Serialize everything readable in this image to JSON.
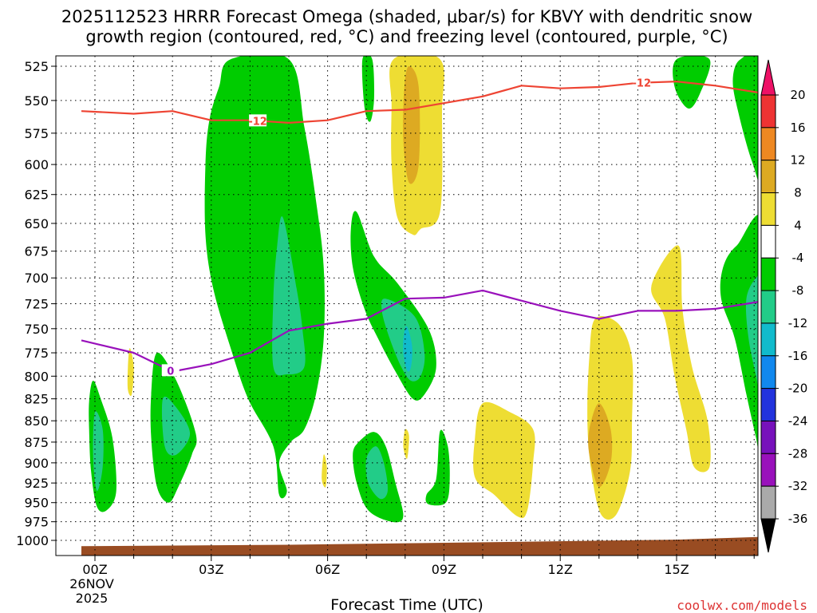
{
  "chart_data": {
    "type": "time-height cross section",
    "title_line1": "2025112523 HRRR Forecast Omega (shaded, μbar/s) for KBVY with dendritic snow",
    "title_line2": "growth region (contoured, red, °C) and freezing level (contoured, purple, °C)",
    "xlabel": "Forecast Time (UTC)",
    "credit": "coolwx.com/models",
    "xlim": [
      -0.35,
      17.3
    ],
    "ylim_hpa": [
      525,
      1000
    ],
    "y_ticks": [
      "525",
      "550",
      "575",
      "600",
      "625",
      "650",
      "675",
      "700",
      "725",
      "750",
      "775",
      "800",
      "825",
      "850",
      "875",
      "900",
      "925",
      "950",
      "975",
      "1000"
    ],
    "x_ticks": [
      {
        "hour": 0,
        "label": "00Z"
      },
      {
        "hour": 3,
        "label": "03Z"
      },
      {
        "hour": 6,
        "label": "06Z"
      },
      {
        "hour": 9,
        "label": "09Z"
      },
      {
        "hour": 12,
        "label": "12Z"
      },
      {
        "hour": 15,
        "label": "15Z"
      }
    ],
    "date_label": "26NOV",
    "year_label": "2025",
    "colorbar": {
      "ticks": [
        "20",
        "16",
        "12",
        "8",
        "4",
        "-4",
        "-8",
        "-12",
        "-16",
        "-20",
        "-24",
        "-28",
        "-32",
        "-36"
      ],
      "colors": [
        "#ee1166",
        "#ee3333",
        "#ee8822",
        "#ddaa22",
        "#eedd33",
        "#ffffff",
        "#00cc00",
        "#22cc88",
        "#11bbcc",
        "#1188ee",
        "#2233dd",
        "#7711bb",
        "#9911bb",
        "#aaaaaa",
        "#000000"
      ]
    },
    "snow_growth_line": {
      "label": "-12",
      "color": "#ee4433",
      "points": [
        [
          -0.35,
          558
        ],
        [
          1,
          560
        ],
        [
          2,
          558
        ],
        [
          3,
          565
        ],
        [
          4,
          565
        ],
        [
          5,
          567
        ],
        [
          6,
          565
        ],
        [
          7,
          558
        ],
        [
          8,
          557
        ],
        [
          9,
          552
        ],
        [
          10,
          547
        ],
        [
          11,
          539
        ],
        [
          12,
          541
        ],
        [
          13,
          540
        ],
        [
          14,
          537
        ],
        [
          15,
          536
        ],
        [
          16,
          539
        ],
        [
          17.3,
          545
        ]
      ]
    },
    "freezing_line": {
      "label": "0",
      "color": "#9911bb",
      "points": [
        [
          -0.35,
          762
        ],
        [
          1,
          775
        ],
        [
          2,
          795
        ],
        [
          3,
          787
        ],
        [
          4,
          775
        ],
        [
          5,
          752
        ],
        [
          6,
          745
        ],
        [
          7,
          740
        ],
        [
          8,
          720
        ],
        [
          9,
          719
        ],
        [
          10,
          712
        ],
        [
          11,
          722
        ],
        [
          12,
          732
        ],
        [
          13,
          740
        ],
        [
          14,
          732
        ],
        [
          15,
          732
        ],
        [
          16,
          730
        ],
        [
          17.3,
          722
        ]
      ]
    },
    "omega_regions": [
      {
        "value": -4,
        "color": "#00cc00",
        "points": [
          [
            3.5,
            520
          ],
          [
            5.0,
            520
          ],
          [
            5.4,
            570
          ],
          [
            5.7,
            630
          ],
          [
            5.9,
            690
          ],
          [
            5.9,
            760
          ],
          [
            5.7,
            820
          ],
          [
            5.4,
            860
          ],
          [
            5.05,
            875
          ],
          [
            4.75,
            900
          ],
          [
            4.95,
            935
          ],
          [
            4.75,
            940
          ],
          [
            4.6,
            880
          ],
          [
            3.95,
            825
          ],
          [
            3.5,
            770
          ],
          [
            3.05,
            710
          ],
          [
            2.85,
            660
          ],
          [
            2.85,
            600
          ],
          [
            2.95,
            565
          ],
          [
            3.2,
            540
          ]
        ]
      },
      {
        "value": -8,
        "color": "#22cc88",
        "points": [
          [
            4.85,
            645
          ],
          [
            5.2,
            710
          ],
          [
            5.35,
            750
          ],
          [
            5.4,
            790
          ],
          [
            4.95,
            798
          ],
          [
            4.6,
            790
          ],
          [
            4.6,
            720
          ],
          [
            4.7,
            670
          ]
        ]
      },
      {
        "value": -4,
        "color": "#00cc00",
        "points": [
          [
            6.75,
            640
          ],
          [
            7.2,
            680
          ],
          [
            7.8,
            705
          ],
          [
            8.6,
            750
          ],
          [
            8.8,
            790
          ],
          [
            8.5,
            820
          ],
          [
            8.2,
            825
          ],
          [
            7.75,
            795
          ],
          [
            7.3,
            760
          ],
          [
            6.95,
            730
          ],
          [
            6.65,
            690
          ],
          [
            6.6,
            655
          ]
        ]
      },
      {
        "value": -8,
        "color": "#22cc88",
        "points": [
          [
            7.5,
            720
          ],
          [
            8.25,
            738
          ],
          [
            8.5,
            775
          ],
          [
            8.4,
            800
          ],
          [
            8.15,
            805
          ],
          [
            7.9,
            790
          ],
          [
            7.6,
            760
          ],
          [
            7.4,
            732
          ]
        ]
      },
      {
        "value": -12,
        "color": "#11bbcc",
        "points": [
          [
            8.05,
            748
          ],
          [
            8.18,
            768
          ],
          [
            8.15,
            790
          ],
          [
            8.05,
            794
          ],
          [
            7.95,
            775
          ],
          [
            7.97,
            755
          ]
        ]
      },
      {
        "value": -4,
        "color": "#00cc00",
        "points": [
          [
            6.8,
            875
          ],
          [
            7.2,
            863
          ],
          [
            7.5,
            880
          ],
          [
            7.75,
            925
          ],
          [
            7.95,
            968
          ],
          [
            7.65,
            975
          ],
          [
            7.05,
            960
          ],
          [
            6.75,
            925
          ],
          [
            6.65,
            890
          ]
        ]
      },
      {
        "value": -8,
        "color": "#22cc88",
        "points": [
          [
            7.0,
            895
          ],
          [
            7.25,
            880
          ],
          [
            7.45,
            900
          ],
          [
            7.55,
            935
          ],
          [
            7.35,
            945
          ],
          [
            7.05,
            925
          ]
        ]
      },
      {
        "value": -4,
        "color": "#00cc00",
        "points": [
          [
            8.9,
            862
          ],
          [
            9.1,
            880
          ],
          [
            9.15,
            920
          ],
          [
            9.05,
            950
          ],
          [
            8.6,
            952
          ],
          [
            8.55,
            940
          ],
          [
            8.8,
            920
          ]
        ]
      },
      {
        "value": -4,
        "color": "#00cc00",
        "points": [
          [
            1.6,
            775
          ],
          [
            2.1,
            805
          ],
          [
            2.6,
            865
          ],
          [
            2.5,
            890
          ],
          [
            2.15,
            930
          ],
          [
            1.9,
            950
          ],
          [
            1.6,
            930
          ],
          [
            1.45,
            870
          ],
          [
            1.45,
            820
          ]
        ]
      },
      {
        "value": -8,
        "color": "#22cc88",
        "points": [
          [
            1.75,
            825
          ],
          [
            2.1,
            835
          ],
          [
            2.45,
            865
          ],
          [
            2.1,
            890
          ],
          [
            1.8,
            880
          ]
        ]
      },
      {
        "value": -4,
        "color": "#00cc00",
        "points": [
          [
            -0.05,
            805
          ],
          [
            0.15,
            825
          ],
          [
            0.45,
            870
          ],
          [
            0.55,
            935
          ],
          [
            0.3,
            960
          ],
          [
            0.05,
            955
          ],
          [
            -0.1,
            910
          ],
          [
            -0.15,
            860
          ],
          [
            -0.15,
            828
          ]
        ]
      },
      {
        "value": -8,
        "color": "#22cc88",
        "points": [
          [
            0.0,
            840
          ],
          [
            0.2,
            860
          ],
          [
            0.2,
            905
          ],
          [
            0.05,
            935
          ],
          [
            -0.05,
            890
          ]
        ]
      },
      {
        "value": -4,
        "color": "#00cc00",
        "points": [
          [
            6.9,
            520
          ],
          [
            7.15,
            520
          ],
          [
            7.2,
            548
          ],
          [
            7.1,
            566
          ],
          [
            6.95,
            555
          ]
        ]
      },
      {
        "value": -4,
        "color": "#00cc00",
        "points": [
          [
            15.0,
            520
          ],
          [
            15.85,
            520
          ],
          [
            15.6,
            545
          ],
          [
            15.3,
            556
          ],
          [
            14.95,
            540
          ]
        ]
      },
      {
        "value": -4,
        "color": "#00cc00",
        "points": [
          [
            16.65,
            520
          ],
          [
            17.3,
            520
          ],
          [
            17.3,
            620
          ],
          [
            16.95,
            598
          ],
          [
            16.6,
            560
          ],
          [
            16.45,
            535
          ]
        ]
      },
      {
        "value": -4,
        "color": "#00cc00",
        "points": [
          [
            17.3,
            655
          ],
          [
            17.3,
            920
          ],
          [
            17.05,
            870
          ],
          [
            16.8,
            820
          ],
          [
            16.5,
            760
          ],
          [
            16.15,
            720
          ],
          [
            16.2,
            690
          ],
          [
            16.55,
            670
          ]
        ]
      },
      {
        "value": -8,
        "color": "#22cc88",
        "points": [
          [
            17.3,
            700
          ],
          [
            17.3,
            850
          ],
          [
            17.05,
            800
          ],
          [
            16.85,
            758
          ],
          [
            16.8,
            720
          ],
          [
            17.05,
            700
          ]
        ]
      },
      {
        "value": 4,
        "color": "#eedd33",
        "points": [
          [
            7.7,
            520
          ],
          [
            8.9,
            520
          ],
          [
            8.95,
            560
          ],
          [
            8.9,
            640
          ],
          [
            8.4,
            655
          ],
          [
            8.2,
            660
          ],
          [
            7.8,
            645
          ],
          [
            7.65,
            600
          ],
          [
            7.65,
            555
          ]
        ]
      },
      {
        "value": 8,
        "color": "#ddaa22",
        "points": [
          [
            8.1,
            525
          ],
          [
            8.35,
            540
          ],
          [
            8.35,
            600
          ],
          [
            8.1,
            615
          ],
          [
            7.95,
            580
          ],
          [
            7.98,
            540
          ]
        ]
      },
      {
        "value": 4,
        "color": "#eedd33",
        "points": [
          [
            10.0,
            830
          ],
          [
            10.7,
            840
          ],
          [
            11.3,
            860
          ],
          [
            11.3,
            900
          ],
          [
            11.15,
            960
          ],
          [
            10.9,
            968
          ],
          [
            10.3,
            940
          ],
          [
            9.8,
            918
          ],
          [
            9.8,
            870
          ]
        ]
      },
      {
        "value": 4,
        "color": "#eedd33",
        "points": [
          [
            12.9,
            740
          ],
          [
            13.5,
            745
          ],
          [
            13.85,
            780
          ],
          [
            13.85,
            850
          ],
          [
            13.8,
            910
          ],
          [
            13.45,
            965
          ],
          [
            13.05,
            965
          ],
          [
            12.8,
            910
          ],
          [
            12.7,
            850
          ],
          [
            12.75,
            780
          ]
        ]
      },
      {
        "value": 8,
        "color": "#ddaa22",
        "points": [
          [
            13.0,
            830
          ],
          [
            13.3,
            860
          ],
          [
            13.3,
            900
          ],
          [
            13.0,
            930
          ],
          [
            12.75,
            890
          ],
          [
            12.75,
            860
          ]
        ]
      },
      {
        "value": 4,
        "color": "#eedd33",
        "points": [
          [
            15.05,
            670
          ],
          [
            15.15,
            730
          ],
          [
            15.4,
            790
          ],
          [
            15.8,
            850
          ],
          [
            15.85,
            905
          ],
          [
            15.45,
            905
          ],
          [
            15.25,
            860
          ],
          [
            14.95,
            800
          ],
          [
            14.7,
            740
          ],
          [
            14.35,
            708
          ]
        ]
      },
      {
        "value": 4,
        "color": "#eedd33",
        "points": [
          [
            0.9,
            770
          ],
          [
            1.0,
            790
          ],
          [
            0.95,
            820
          ],
          [
            0.85,
            815
          ],
          [
            0.85,
            790
          ]
        ]
      },
      {
        "value": 4,
        "color": "#eedd33",
        "points": [
          [
            5.9,
            890
          ],
          [
            5.98,
            905
          ],
          [
            5.95,
            930
          ],
          [
            5.85,
            920
          ]
        ]
      },
      {
        "value": 4,
        "color": "#eedd33",
        "points": [
          [
            8.0,
            860
          ],
          [
            8.1,
            868
          ],
          [
            8.05,
            895
          ],
          [
            7.95,
            880
          ]
        ]
      }
    ],
    "terrain": {
      "color": "#994c22",
      "points": [
        [
          -0.35,
          1008
        ],
        [
          5,
          1006
        ],
        [
          11,
          1002
        ],
        [
          15,
          999
        ],
        [
          17.3,
          995
        ]
      ]
    }
  }
}
